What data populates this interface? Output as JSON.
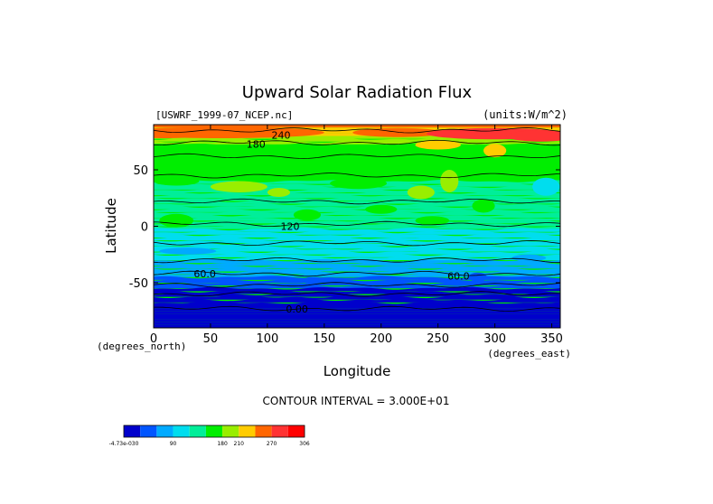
{
  "chart_data": {
    "type": "heatmap",
    "title": "Upward Solar Radiation Flux",
    "source_label": "[USWRF_1999-07_NCEP.nc]",
    "units_label": "(units:W/m^2)",
    "xlabel": "Longitude",
    "ylabel": "Latitude",
    "x_unit_label": "(degrees_east)",
    "y_unit_label": "(degrees_north)",
    "xlim": [
      0,
      357.5
    ],
    "ylim": [
      -90,
      90
    ],
    "x_ticks": [
      {
        "value": 0,
        "label": "0"
      },
      {
        "value": 50,
        "label": "50"
      },
      {
        "value": 100,
        "label": "100"
      },
      {
        "value": 150,
        "label": "150"
      },
      {
        "value": 200,
        "label": "200"
      },
      {
        "value": 250,
        "label": "250"
      },
      {
        "value": 300,
        "label": "300"
      },
      {
        "value": 350,
        "label": "350"
      }
    ],
    "y_ticks": [
      {
        "value": 50,
        "label": "50"
      },
      {
        "value": 0,
        "label": "0"
      },
      {
        "value": -50,
        "label": "-50"
      }
    ],
    "contour_interval_label": "CONTOUR INTERVAL = 3.000E+01",
    "contour_labels": [
      {
        "text": "240",
        "lon": 112,
        "lat": 81
      },
      {
        "text": "180",
        "lon": 90,
        "lat": 73
      },
      {
        "text": "120",
        "lon": 120,
        "lat": 0
      },
      {
        "text": "60.0",
        "lon": 45,
        "lat": -42
      },
      {
        "text": "60.0",
        "lon": 268,
        "lat": -44
      },
      {
        "text": "0.00",
        "lon": 126,
        "lat": -73
      }
    ],
    "colorbar": {
      "levels": [
        0,
        30,
        60,
        90,
        120,
        150,
        180,
        210,
        240,
        270,
        300
      ],
      "colors": [
        "#0000cc",
        "#0055ff",
        "#00aaff",
        "#00ddee",
        "#00ee99",
        "#00ee00",
        "#99ee00",
        "#ffcc00",
        "#ff6600",
        "#ff3333",
        "#ff0000"
      ],
      "tick_labels": [
        {
          "text": "-4.73e-030",
          "at": 0
        },
        {
          "text": "90",
          "at": 3
        },
        {
          "text": "180",
          "at": 6
        },
        {
          "text": "210",
          "at": 7
        },
        {
          "text": "270",
          "at": 9
        },
        {
          "text": "306",
          "at": 11
        }
      ]
    },
    "zonal_profile": [
      {
        "lat": 90,
        "value": 245
      },
      {
        "lat": 80,
        "value": 210
      },
      {
        "lat": 70,
        "value": 170
      },
      {
        "lat": 60,
        "value": 155
      },
      {
        "lat": 50,
        "value": 150
      },
      {
        "lat": 40,
        "value": 150
      },
      {
        "lat": 30,
        "value": 145
      },
      {
        "lat": 20,
        "value": 140
      },
      {
        "lat": 10,
        "value": 140
      },
      {
        "lat": 0,
        "value": 125
      },
      {
        "lat": -10,
        "value": 110
      },
      {
        "lat": -20,
        "value": 100
      },
      {
        "lat": -30,
        "value": 90
      },
      {
        "lat": -40,
        "value": 70
      },
      {
        "lat": -50,
        "value": 45
      },
      {
        "lat": -60,
        "value": 20
      },
      {
        "lat": -70,
        "value": 5
      },
      {
        "lat": -90,
        "value": 0
      }
    ]
  },
  "colors": {
    "polar_night": "#7700aa",
    "frame": "#000000"
  }
}
